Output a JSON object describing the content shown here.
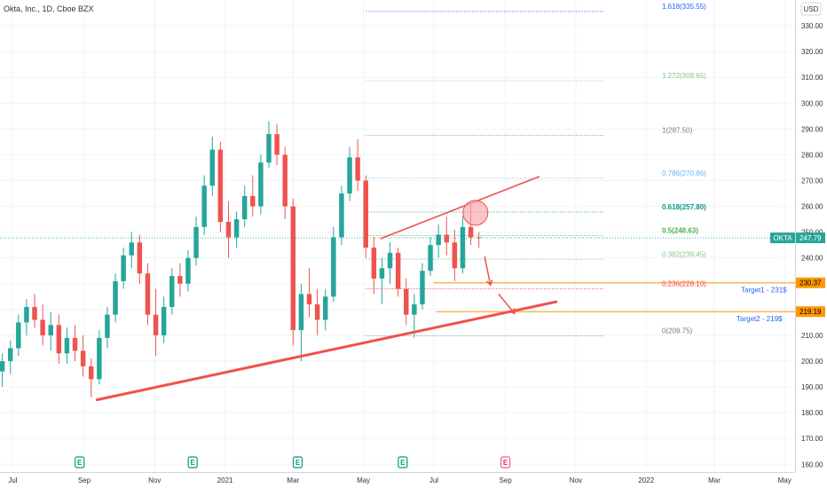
{
  "chart_data": {
    "type": "candlestick",
    "title": "Okta, Inc., 1D, Cboe BZX",
    "currency_label": "USD",
    "y_ticks": [
      160,
      170,
      180,
      190,
      200,
      210,
      220,
      230,
      240,
      250,
      260,
      270,
      280,
      290,
      300,
      310,
      320,
      330
    ],
    "y_tick_labels": [
      "160.00",
      "170.00",
      "180.00",
      "190.00",
      "200.00",
      "210.00",
      "220.00",
      "230.00",
      "240.00",
      "250.00",
      "260.00",
      "270.00",
      "280.00",
      "290.00",
      "300.00",
      "310.00",
      "320.00",
      "330.00"
    ],
    "ylim": [
      157,
      340
    ],
    "x_labels": [
      {
        "label": "Jul",
        "date": "2020-07-01"
      },
      {
        "label": "Sep",
        "date": "2020-09-01"
      },
      {
        "label": "Nov",
        "date": "2020-11-01"
      },
      {
        "label": "2021",
        "date": "2021-01-01"
      },
      {
        "label": "Mar",
        "date": "2021-03-01"
      },
      {
        "label": "May",
        "date": "2021-05-01"
      },
      {
        "label": "Jul",
        "date": "2021-07-01"
      },
      {
        "label": "Sep",
        "date": "2021-09-01"
      },
      {
        "label": "Nov",
        "date": "2021-11-01"
      },
      {
        "label": "2022",
        "date": "2022-01-01"
      },
      {
        "label": "Mar",
        "date": "2022-03-01"
      },
      {
        "label": "May",
        "date": "2022-05-01"
      }
    ],
    "xlim": [
      "2020-06-20",
      "2022-05-10"
    ],
    "candles": [
      {
        "date": "2020-06-22",
        "o": 196,
        "h": 203,
        "l": 190,
        "c": 200
      },
      {
        "date": "2020-06-29",
        "o": 200,
        "h": 208,
        "l": 195,
        "c": 205
      },
      {
        "date": "2020-07-06",
        "o": 205,
        "h": 218,
        "l": 202,
        "c": 215
      },
      {
        "date": "2020-07-13",
        "o": 215,
        "h": 224,
        "l": 210,
        "c": 221
      },
      {
        "date": "2020-07-20",
        "o": 221,
        "h": 226,
        "l": 213,
        "c": 216
      },
      {
        "date": "2020-07-27",
        "o": 216,
        "h": 222,
        "l": 206,
        "c": 210
      },
      {
        "date": "2020-08-03",
        "o": 210,
        "h": 219,
        "l": 204,
        "c": 214
      },
      {
        "date": "2020-08-10",
        "o": 214,
        "h": 218,
        "l": 199,
        "c": 203
      },
      {
        "date": "2020-08-17",
        "o": 203,
        "h": 213,
        "l": 199,
        "c": 209
      },
      {
        "date": "2020-08-24",
        "o": 209,
        "h": 214,
        "l": 200,
        "c": 204
      },
      {
        "date": "2020-08-31",
        "o": 204,
        "h": 210,
        "l": 194,
        "c": 198
      },
      {
        "date": "2020-09-07",
        "o": 198,
        "h": 201,
        "l": 186,
        "c": 193
      },
      {
        "date": "2020-09-14",
        "o": 193,
        "h": 212,
        "l": 191,
        "c": 209
      },
      {
        "date": "2020-09-21",
        "o": 209,
        "h": 221,
        "l": 205,
        "c": 218
      },
      {
        "date": "2020-09-28",
        "o": 218,
        "h": 234,
        "l": 215,
        "c": 231
      },
      {
        "date": "2020-10-05",
        "o": 231,
        "h": 244,
        "l": 228,
        "c": 241
      },
      {
        "date": "2020-10-12",
        "o": 241,
        "h": 250,
        "l": 236,
        "c": 246
      },
      {
        "date": "2020-10-19",
        "o": 246,
        "h": 249,
        "l": 230,
        "c": 234
      },
      {
        "date": "2020-10-26",
        "o": 234,
        "h": 238,
        "l": 214,
        "c": 218
      },
      {
        "date": "2020-11-02",
        "o": 218,
        "h": 228,
        "l": 202,
        "c": 210
      },
      {
        "date": "2020-11-09",
        "o": 210,
        "h": 225,
        "l": 207,
        "c": 221
      },
      {
        "date": "2020-11-16",
        "o": 221,
        "h": 236,
        "l": 218,
        "c": 233
      },
      {
        "date": "2020-11-23",
        "o": 233,
        "h": 238,
        "l": 225,
        "c": 230
      },
      {
        "date": "2020-11-30",
        "o": 230,
        "h": 243,
        "l": 227,
        "c": 240
      },
      {
        "date": "2020-12-07",
        "o": 240,
        "h": 256,
        "l": 237,
        "c": 252
      },
      {
        "date": "2020-12-14",
        "o": 252,
        "h": 272,
        "l": 249,
        "c": 268
      },
      {
        "date": "2020-12-21",
        "o": 268,
        "h": 287,
        "l": 264,
        "c": 282
      },
      {
        "date": "2020-12-28",
        "o": 282,
        "h": 285,
        "l": 250,
        "c": 254
      },
      {
        "date": "2021-01-04",
        "o": 254,
        "h": 262,
        "l": 240,
        "c": 248
      },
      {
        "date": "2021-01-11",
        "o": 248,
        "h": 258,
        "l": 244,
        "c": 255
      },
      {
        "date": "2021-01-18",
        "o": 255,
        "h": 268,
        "l": 252,
        "c": 264
      },
      {
        "date": "2021-01-25",
        "o": 264,
        "h": 272,
        "l": 256,
        "c": 260
      },
      {
        "date": "2021-02-01",
        "o": 260,
        "h": 280,
        "l": 257,
        "c": 277
      },
      {
        "date": "2021-02-08",
        "o": 277,
        "h": 293,
        "l": 275,
        "c": 288
      },
      {
        "date": "2021-02-15",
        "o": 288,
        "h": 292,
        "l": 276,
        "c": 280
      },
      {
        "date": "2021-02-22",
        "o": 280,
        "h": 283,
        "l": 255,
        "c": 260
      },
      {
        "date": "2021-03-01",
        "o": 260,
        "h": 263,
        "l": 206,
        "c": 212
      },
      {
        "date": "2021-03-08",
        "o": 212,
        "h": 230,
        "l": 200,
        "c": 226
      },
      {
        "date": "2021-03-15",
        "o": 226,
        "h": 236,
        "l": 217,
        "c": 222
      },
      {
        "date": "2021-03-22",
        "o": 222,
        "h": 228,
        "l": 210,
        "c": 216
      },
      {
        "date": "2021-03-29",
        "o": 216,
        "h": 228,
        "l": 212,
        "c": 225
      },
      {
        "date": "2021-04-05",
        "o": 225,
        "h": 252,
        "l": 223,
        "c": 248
      },
      {
        "date": "2021-04-12",
        "o": 248,
        "h": 268,
        "l": 245,
        "c": 265
      },
      {
        "date": "2021-04-19",
        "o": 265,
        "h": 283,
        "l": 262,
        "c": 279
      },
      {
        "date": "2021-04-26",
        "o": 279,
        "h": 286,
        "l": 266,
        "c": 270
      },
      {
        "date": "2021-05-03",
        "o": 270,
        "h": 272,
        "l": 240,
        "c": 244
      },
      {
        "date": "2021-05-10",
        "o": 244,
        "h": 248,
        "l": 226,
        "c": 232
      },
      {
        "date": "2021-05-17",
        "o": 232,
        "h": 240,
        "l": 222,
        "c": 236
      },
      {
        "date": "2021-05-24",
        "o": 236,
        "h": 246,
        "l": 230,
        "c": 242
      },
      {
        "date": "2021-05-31",
        "o": 242,
        "h": 244,
        "l": 225,
        "c": 228
      },
      {
        "date": "2021-06-07",
        "o": 228,
        "h": 232,
        "l": 214,
        "c": 218
      },
      {
        "date": "2021-06-14",
        "o": 218,
        "h": 226,
        "l": 209,
        "c": 222
      },
      {
        "date": "2021-06-21",
        "o": 222,
        "h": 238,
        "l": 220,
        "c": 235
      },
      {
        "date": "2021-06-28",
        "o": 235,
        "h": 248,
        "l": 233,
        "c": 245
      },
      {
        "date": "2021-07-05",
        "o": 245,
        "h": 253,
        "l": 240,
        "c": 249
      },
      {
        "date": "2021-07-12",
        "o": 249,
        "h": 256,
        "l": 241,
        "c": 246
      },
      {
        "date": "2021-07-19",
        "o": 246,
        "h": 251,
        "l": 231,
        "c": 236
      },
      {
        "date": "2021-07-26",
        "o": 236,
        "h": 256,
        "l": 234,
        "c": 252
      },
      {
        "date": "2021-08-02",
        "o": 252,
        "h": 261,
        "l": 245,
        "c": 248
      },
      {
        "date": "2021-08-09",
        "o": 248,
        "h": 250,
        "l": 244,
        "c": 247.79
      }
    ],
    "last_price": {
      "value": 247.79,
      "ticker": "OKTA",
      "label": "247.79"
    },
    "fib_levels": [
      {
        "ratio": "0",
        "price": 209.75,
        "label": "0(209.75)",
        "color": "#787b86"
      },
      {
        "ratio": "0.236",
        "price": 228.1,
        "label": "0.236(228.10)",
        "color": "#f23645"
      },
      {
        "ratio": "0.382",
        "price": 239.45,
        "label": "0.382(239.45)",
        "color": "#81c784"
      },
      {
        "ratio": "0.5",
        "price": 248.63,
        "label": "0.5(248.63)",
        "color": "#4caf50"
      },
      {
        "ratio": "0.618",
        "price": 257.8,
        "label": "0.618(257.80)",
        "color": "#089981"
      },
      {
        "ratio": "0.786",
        "price": 270.86,
        "label": "0.786(270.86)",
        "color": "#64b5f6"
      },
      {
        "ratio": "1",
        "price": 287.5,
        "label": "1(287.50)",
        "color": "#787b86"
      },
      {
        "ratio": "1.272",
        "price": 308.65,
        "label": "1.272(308.65)",
        "color": "#81c784"
      },
      {
        "ratio": "1.618",
        "price": 335.55,
        "label": "1.618(335.55)",
        "color": "#2962ff"
      }
    ],
    "fib_range": {
      "start": "2021-05-03",
      "end": "2021-11-25"
    },
    "targets": [
      {
        "name": "Target1 - 231$",
        "price": 230.37,
        "badge": "230.37",
        "start": "2021-07-01",
        "end": "2022-05-10"
      },
      {
        "name": "Target2  - 219$",
        "price": 219.19,
        "badge": "219.19",
        "start": "2021-07-03",
        "end": "2022-05-10"
      }
    ],
    "trendlines": [
      {
        "id": "support",
        "from": {
          "date": "2020-09-12",
          "price": 185
        },
        "to": {
          "date": "2021-10-15",
          "price": 223
        },
        "color": "#f0514b"
      },
      {
        "id": "resistance",
        "from": {
          "date": "2021-05-16",
          "price": 247.5
        },
        "to": {
          "date": "2021-09-30",
          "price": 271.5
        },
        "color": "#f0514b"
      }
    ],
    "highlight_circle": {
      "date": "2021-08-06",
      "price": 257.5
    },
    "arrows": [
      {
        "from": {
          "date": "2021-08-14",
          "price": 240.5
        },
        "to": {
          "date": "2021-08-19",
          "price": 229.5
        }
      },
      {
        "from": {
          "date": "2021-08-26",
          "price": 226
        },
        "to": {
          "date": "2021-09-09",
          "price": 218.5
        }
      }
    ],
    "earnings_markers": [
      {
        "date": "2020-08-28",
        "label": "E"
      },
      {
        "date": "2020-12-04",
        "label": "E"
      },
      {
        "date": "2021-03-05",
        "label": "E"
      },
      {
        "date": "2021-06-04",
        "label": "E"
      },
      {
        "date": "2021-09-01",
        "label": "E",
        "upcoming": true
      }
    ],
    "colors": {
      "up": "#26a69a",
      "down": "#ef5350",
      "trendline": "#f0514b",
      "target_line": "#ff9800",
      "target_badge": "#ff9800",
      "last_price_badge": "#26a69a",
      "last_price_line": "#26a69a",
      "target_label": "#2962ff",
      "earnings_icon": "#089981",
      "earnings_icon_upcoming": "#e91e63",
      "circle_fill": "#f6a5ad",
      "circle_stroke": "#f0514b"
    }
  }
}
